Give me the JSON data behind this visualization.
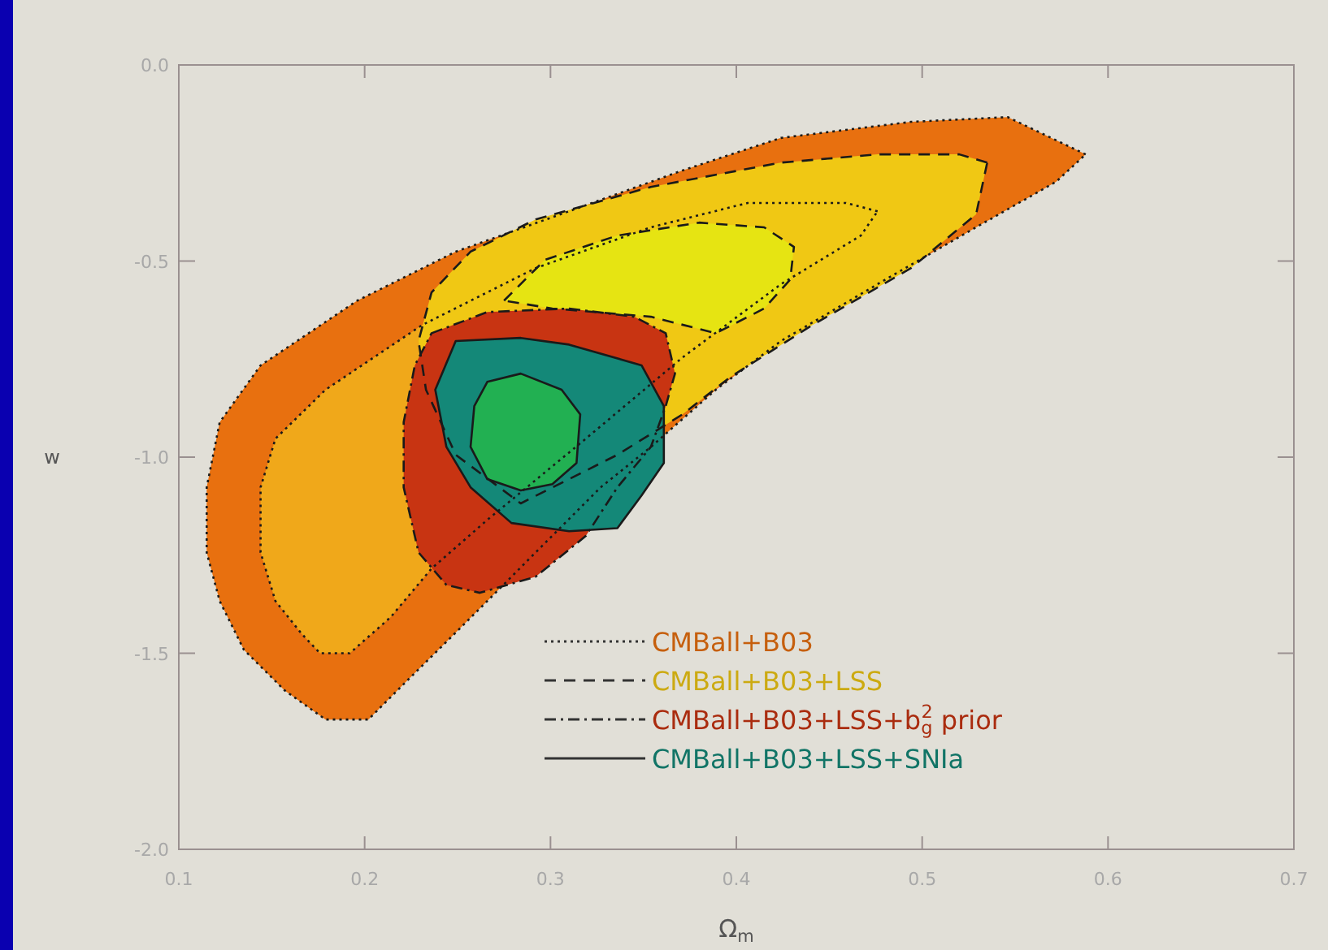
{
  "chart_data": {
    "type": "area",
    "xlabel": "Ω$_{m}$",
    "ylabel": "w",
    "xlim": [
      0.1,
      0.7
    ],
    "ylim": [
      -2.0,
      0.0
    ],
    "xticks": [
      0.1,
      0.2,
      0.3,
      0.4,
      0.5,
      0.6,
      0.7
    ],
    "yticks": [
      {
        "value": -2,
        "label": "-2.0"
      },
      {
        "value": -1.5,
        "label": "-1.5"
      },
      {
        "value": -1,
        "label": "-1.0"
      },
      {
        "value": -0.5,
        "label": "-0.5"
      },
      {
        "value": 0,
        "label": "0.0"
      }
    ],
    "legend": "bottom",
    "grid": false,
    "series": [
      {
        "name": "CMBall+B03",
        "color": "#e8700f",
        "line_style": "dotted",
        "x": [
          0.588,
          0.546,
          0.494,
          0.424,
          0.371,
          0.31,
          0.249,
          0.196,
          0.144,
          0.122,
          0.115,
          0.115,
          0.122,
          0.135,
          0.157,
          0.179,
          0.202,
          0.222,
          0.244,
          0.266,
          0.292,
          0.327,
          0.354,
          0.389,
          0.424,
          0.476,
          0.529,
          0.572
        ],
        "values": [
          -0.228,
          -0.133,
          -0.145,
          -0.186,
          -0.269,
          -0.373,
          -0.476,
          -0.601,
          -0.766,
          -0.911,
          -1.077,
          -1.243,
          -1.367,
          -1.491,
          -1.595,
          -1.669,
          -1.669,
          -1.574,
          -1.471,
          -1.367,
          -1.243,
          -1.077,
          -0.974,
          -0.828,
          -0.704,
          -0.559,
          -0.414,
          -0.298
        ]
      },
      {
        "color": "#f0a81a",
        "line_style": "dotted",
        "x": [
          0.476,
          0.459,
          0.406,
          0.354,
          0.292,
          0.231,
          0.179,
          0.152,
          0.144,
          0.144,
          0.152,
          0.166,
          0.176,
          0.192,
          0.214,
          0.236,
          0.266,
          0.319,
          0.371,
          0.424,
          0.467
        ],
        "values": [
          -0.373,
          -0.352,
          -0.352,
          -0.414,
          -0.518,
          -0.663,
          -0.828,
          -0.953,
          -1.077,
          -1.243,
          -1.367,
          -1.45,
          -1.5,
          -1.5,
          -1.408,
          -1.284,
          -1.16,
          -0.953,
          -0.746,
          -0.559,
          -0.435
        ]
      },
      {
        "name": "CMBall+B03+LSS",
        "color": "#f0c814",
        "line_style": "dashed",
        "x": [
          0.535,
          0.52,
          0.476,
          0.424,
          0.354,
          0.292,
          0.257,
          0.236,
          0.229,
          0.233,
          0.249,
          0.284,
          0.336,
          0.371,
          0.397,
          0.441,
          0.494,
          0.529
        ],
        "values": [
          -0.249,
          -0.228,
          -0.228,
          -0.249,
          -0.311,
          -0.394,
          -0.476,
          -0.58,
          -0.704,
          -0.828,
          -0.994,
          -1.118,
          -0.994,
          -0.891,
          -0.795,
          -0.663,
          -0.518,
          -0.381
        ]
      },
      {
        "color": "#e6e412",
        "line_style": "dashed",
        "x": [
          0.275,
          0.297,
          0.336,
          0.38,
          0.415,
          0.431,
          0.429,
          0.415,
          0.389,
          0.354,
          0.301
        ],
        "values": [
          -0.601,
          -0.497,
          -0.435,
          -0.402,
          -0.414,
          -0.464,
          -0.547,
          -0.621,
          -0.684,
          -0.642,
          -0.621
        ]
      },
      {
        "name": "CMBall+B03+LSS+b$_{g}$$^{2}$ prior",
        "color": "#c83412",
        "line_style": "dashdot",
        "x": [
          0.236,
          0.266,
          0.31,
          0.345,
          0.362,
          0.367,
          0.362,
          0.354,
          0.336,
          0.319,
          0.292,
          0.262,
          0.244,
          0.229,
          0.221,
          0.221,
          0.227
        ],
        "values": [
          -0.684,
          -0.63,
          -0.621,
          -0.642,
          -0.684,
          -0.787,
          -0.87,
          -0.974,
          -1.077,
          -1.201,
          -1.305,
          -1.346,
          -1.326,
          -1.243,
          -1.077,
          -0.911,
          -0.766
        ]
      },
      {
        "name": "CMBall+B03+LSS+SNIa",
        "color": "#148878",
        "line_style": "solid",
        "x": [
          0.249,
          0.284,
          0.31,
          0.349,
          0.361,
          0.361,
          0.349,
          0.336,
          0.31,
          0.279,
          0.257,
          0.244,
          0.238
        ],
        "values": [
          -0.704,
          -0.696,
          -0.713,
          -0.766,
          -0.87,
          -1.015,
          -1.098,
          -1.181,
          -1.189,
          -1.168,
          -1.077,
          -0.974,
          -0.828
        ]
      },
      {
        "color": "#22b052",
        "line_style": "solid",
        "x": [
          0.266,
          0.284,
          0.306,
          0.316,
          0.314,
          0.301,
          0.284,
          0.266,
          0.257,
          0.259
        ],
        "values": [
          -0.808,
          -0.787,
          -0.828,
          -0.891,
          -1.015,
          -1.069,
          -1.085,
          -1.056,
          -0.974,
          -0.87
        ]
      }
    ]
  }
}
